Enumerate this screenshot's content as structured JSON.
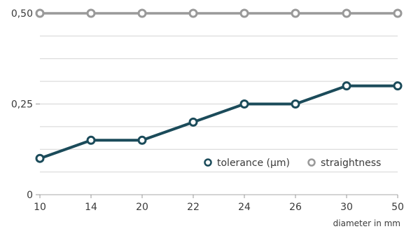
{
  "chart_data": {
    "type": "line",
    "categories": [
      "10",
      "14",
      "20",
      "22",
      "24",
      "26",
      "30",
      "50"
    ],
    "series": [
      {
        "name": "tolerance (µm)",
        "color": "#1b4b5a",
        "values": [
          0.1,
          0.15,
          0.15,
          0.2,
          0.25,
          0.25,
          0.3,
          0.3
        ]
      },
      {
        "name": "straightness",
        "color": "#999999",
        "values": [
          0.5,
          0.5,
          0.5,
          0.5,
          0.5,
          0.5,
          0.5,
          0.5
        ]
      }
    ],
    "title": "",
    "xlabel": "diameter in mm",
    "ylabel": "",
    "ylim": [
      0,
      0.5
    ],
    "yticks": [
      {
        "value": 0,
        "label": "0"
      },
      {
        "value": 0.25,
        "label": "0,25"
      },
      {
        "value": 0.5,
        "label": "0,50"
      }
    ],
    "grid": true,
    "legend_position": "bottom-right"
  }
}
